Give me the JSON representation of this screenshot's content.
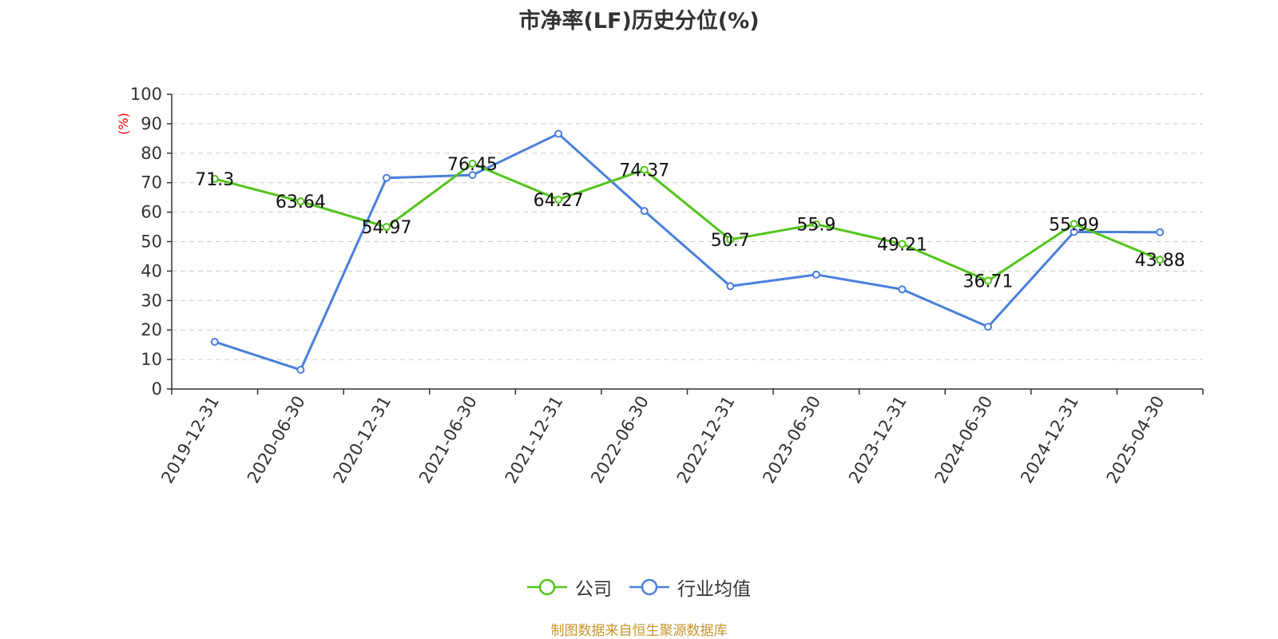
{
  "chart_data": {
    "type": "line",
    "title": "市净率(LF)历史分位(%)",
    "ylabel": "(%)",
    "ylim": [
      0,
      100
    ],
    "yticks": [
      0,
      10,
      20,
      30,
      40,
      50,
      60,
      70,
      80,
      90,
      100
    ],
    "categories": [
      "2019-12-31",
      "2020-06-30",
      "2020-12-31",
      "2021-06-30",
      "2021-12-31",
      "2022-06-30",
      "2022-12-31",
      "2023-06-30",
      "2023-12-31",
      "2024-06-30",
      "2024-12-31",
      "2025-04-30"
    ],
    "series": [
      {
        "name": "公司",
        "color": "#52c41a",
        "labels_shown": true,
        "values": [
          71.3,
          63.64,
          54.97,
          76.45,
          64.27,
          74.37,
          50.7,
          55.9,
          49.21,
          36.71,
          55.99,
          43.88
        ]
      },
      {
        "name": "行业均值",
        "color": "#4a7fdd",
        "labels_shown": false,
        "values": [
          16.0,
          6.5,
          71.6,
          72.6,
          86.6,
          60.4,
          34.9,
          38.8,
          33.8,
          21.1,
          53.3,
          53.2
        ]
      }
    ],
    "grid": true,
    "legend_position": "bottom-center"
  },
  "footer": "制图数据来自恒生聚源数据库",
  "colors": {
    "axis": "#333333",
    "grid": "#cccccc",
    "ylabel": "#ff0000",
    "footer": "#c8962e"
  }
}
